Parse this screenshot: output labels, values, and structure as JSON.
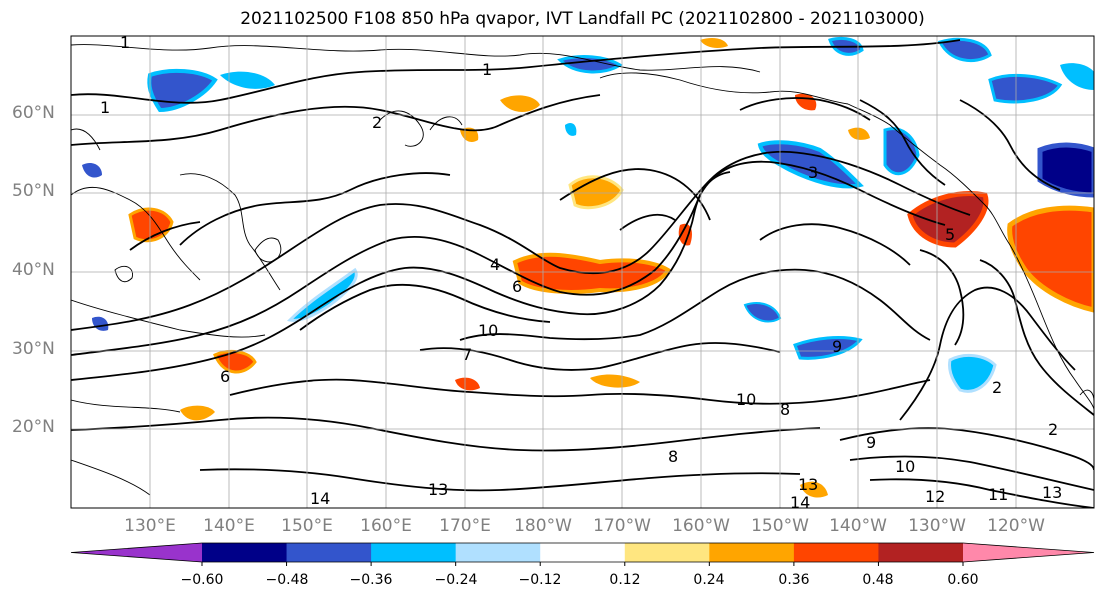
{
  "title": "2021102500 F108 850 hPa qvapor, IVT Landfall PC (2021102800 - 2021103000)",
  "map": {
    "lat_labels": [
      "60°N",
      "50°N",
      "40°N",
      "30°N",
      "20°N"
    ],
    "lon_labels": [
      "130°E",
      "140°E",
      "150°E",
      "160°E",
      "170°E",
      "180°W",
      "170°W",
      "160°W",
      "150°W",
      "140°W",
      "130°W",
      "120°W"
    ],
    "extent": {
      "lon_min": 120,
      "lon_max": 250,
      "lat_min": 10,
      "lat_max": 70
    },
    "contour_labels": [
      "1",
      "1",
      "1",
      "2",
      "3",
      "4",
      "5",
      "6",
      "6",
      "7",
      "8",
      "8",
      "9",
      "9",
      "10",
      "10",
      "10",
      "11",
      "12",
      "13",
      "13",
      "13",
      "14",
      "14",
      "2",
      "2"
    ]
  },
  "colorbar": {
    "ticks": [
      "−0.60",
      "−0.48",
      "−0.36",
      "−0.24",
      "−0.12",
      "0.12",
      "0.24",
      "0.36",
      "0.48",
      "0.60"
    ],
    "colors": [
      "#9933cc",
      "#000088",
      "#3355cc",
      "#00bfff",
      "#b0e0ff",
      "#ffffff",
      "#ffe680",
      "#ffa500",
      "#ff4500",
      "#b22222",
      "#ff88aa"
    ]
  }
}
